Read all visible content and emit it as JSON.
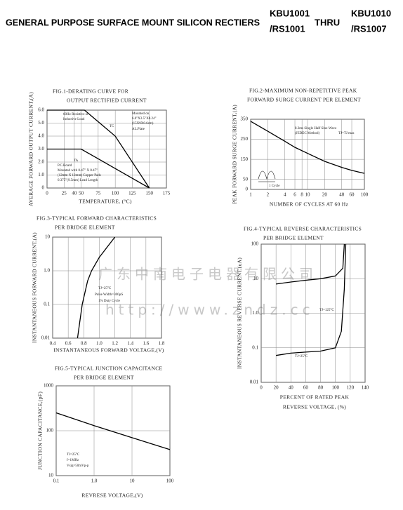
{
  "header": {
    "title": "GENERAL PURPOSE SURFACE MOUNT SILICON RECTIERS",
    "part_from": [
      "KBU1001",
      "/RS1001"
    ],
    "thru": "THRU",
    "part_to": [
      "KBU1010",
      "/RS1007"
    ]
  },
  "watermark": {
    "company": "广东中南电子电器有限公司",
    "url": "http://www.zndz.cc"
  },
  "chart_data": [
    {
      "type": "line",
      "title": [
        "FIG.1-DERATING CURVE FOR",
        "OUTPUT RECTIFIED CURRENT"
      ],
      "y_label": "AVERAGE FORWARD OUTPUT CURRENT,(A)",
      "x_label": [
        "TEMPERATURE, (°C)"
      ],
      "xlim": [
        0,
        175
      ],
      "ylim": [
        0,
        6
      ],
      "xticks": [
        0,
        25,
        40,
        50,
        75,
        100,
        125,
        150,
        175
      ],
      "yticks": [
        0,
        {
          "value": 1,
          "label": "1.0"
        },
        {
          "value": 2,
          "label": "2.0"
        },
        {
          "value": 3,
          "label": "3.0"
        },
        {
          "value": 4,
          "label": "4.0"
        },
        {
          "value": 5,
          "label": "5.0"
        },
        {
          "value": 6,
          "label": "6.0"
        }
      ],
      "grid": true,
      "series": [
        {
          "color": "#000000",
          "x": [
            0,
            55,
            100,
            150
          ],
          "values": [
            6,
            6,
            4,
            0
          ]
        },
        {
          "color": "#000000",
          "x": [
            0,
            50,
            150
          ],
          "values": [
            3,
            3,
            0
          ]
        }
      ],
      "annotations": [
        "60Hz Resistive or",
        "Inductive Load",
        "Mounted on",
        "6.0\"X3.5\"X0.24\"",
        "(15X9X0.6cm)",
        "AL.Plate",
        "TC",
        "TA",
        "P.C.Board",
        "Mounted with 0.47\" X 0.47\"",
        "(12mm X 12mm) Copper Pads",
        "0.375\"(9.5mm) Lead Length"
      ]
    },
    {
      "type": "line",
      "title": [
        "FIG.2-MAXIMUM NON-REPETITIVE PEAK",
        "FORWARD SURGE CURRENT PER ELEMENT"
      ],
      "y_label": "PEAK FORWARD SURGE CURRENT,(A)",
      "x_label": [
        "NUMBER OF CYCLES AT 60 Hz"
      ],
      "xscale": "log",
      "xlim": [
        1,
        100
      ],
      "ylim": [
        0,
        350
      ],
      "xticks": [
        1,
        2,
        4,
        6,
        8,
        10,
        20,
        40,
        60,
        100
      ],
      "yticks": [
        0,
        50,
        150,
        250,
        350
      ],
      "grid": true,
      "series": [
        {
          "color": "#000000",
          "x": [
            1,
            2,
            4,
            6,
            10,
            20,
            40,
            60,
            100
          ],
          "values": [
            340,
            290,
            240,
            210,
            180,
            140,
            110,
            95,
            80
          ]
        }
      ],
      "annotations": [
        "8.3ms Single Half Sine-Wave",
        "(JEDEC Method)",
        "TJ=TJ max",
        "1 Cycle"
      ]
    },
    {
      "type": "line",
      "title": [
        "FIG.3-TYPICAL FORWARD CHARACTERISTICS",
        "PER BRIDGE ELEMENT"
      ],
      "y_label": "INSTANTANEOUS FORWARD CURRENT,(A)",
      "x_label": [
        "INSTANTANEOUS FORWARD VOLTAGE,(V)"
      ],
      "yscale": "log",
      "xlim": [
        0.4,
        1.8
      ],
      "ylim": [
        0.01,
        10
      ],
      "xticks": [
        0.4,
        0.6,
        0.8,
        {
          "value": 1,
          "label": "1.0"
        },
        1.2,
        1.4,
        1.6,
        1.8
      ],
      "yticks": [
        0.01,
        0.1,
        {
          "value": 1,
          "label": "1.0"
        },
        10
      ],
      "grid": true,
      "series": [
        {
          "color": "#000000",
          "x": [
            0.72,
            0.78,
            0.85,
            0.9,
            1.0,
            1.1,
            1.2
          ],
          "values": [
            0.01,
            0.1,
            0.5,
            1,
            2.5,
            5,
            10
          ]
        }
      ],
      "annotations": [
        "TJ=25°C",
        "Pulse Width=300µS",
        "1% Duty Cycle"
      ]
    },
    {
      "type": "line",
      "title": [
        "FIG.4-TYPICAL REVERSE CHARACTERISTICS",
        "PER BRIDGE ELEMENT"
      ],
      "y_label": "INSTANTANEOUS REVERSE CURRENT,(uA)",
      "x_label": [
        "PERCENT OF RATED PEAK",
        "REVERSE VOLTAGE, (%)"
      ],
      "yscale": "log",
      "xlim": [
        0,
        140
      ],
      "ylim": [
        0.01,
        100
      ],
      "xticks": [
        0,
        20,
        40,
        60,
        80,
        100,
        120,
        140
      ],
      "yticks": [
        0.01,
        0.1,
        {
          "value": 1,
          "label": "1.0"
        },
        10,
        100
      ],
      "grid": true,
      "series": [
        {
          "color": "#000000",
          "x": [
            20,
            40,
            60,
            80,
            100,
            110,
            112
          ],
          "values": [
            7,
            8,
            9,
            10,
            12,
            20,
            100
          ]
        },
        {
          "color": "#000000",
          "x": [
            20,
            40,
            60,
            80,
            100,
            108,
            112,
            114
          ],
          "values": [
            0.06,
            0.07,
            0.075,
            0.08,
            0.1,
            0.3,
            5,
            100
          ]
        }
      ],
      "annotations": [
        "TJ=125°C",
        "TJ=25°C"
      ]
    },
    {
      "type": "line",
      "title": [
        "FIG.5-TYPICAL JUNCTION CAPACITANCE",
        "PER BRIDGE ELEMENT"
      ],
      "y_label": "JUNCTION CAPACITANCE,(pF)",
      "x_label": [
        "REVRESE VOLTAGE,(V)"
      ],
      "xscale": "log",
      "yscale": "log",
      "xlim": [
        0.1,
        100
      ],
      "ylim": [
        10,
        1000
      ],
      "xticks": [
        0.1,
        {
          "value": 1,
          "label": "1.0"
        },
        10,
        100
      ],
      "yticks": [
        10,
        100,
        1000
      ],
      "grid": true,
      "series": [
        {
          "color": "#000000",
          "x": [
            0.1,
            1,
            10,
            100
          ],
          "values": [
            250,
            130,
            70,
            38
          ]
        }
      ],
      "annotations": [
        "TJ=25°C",
        "f=1MHz",
        "Vsig=50mVp-p"
      ]
    }
  ]
}
